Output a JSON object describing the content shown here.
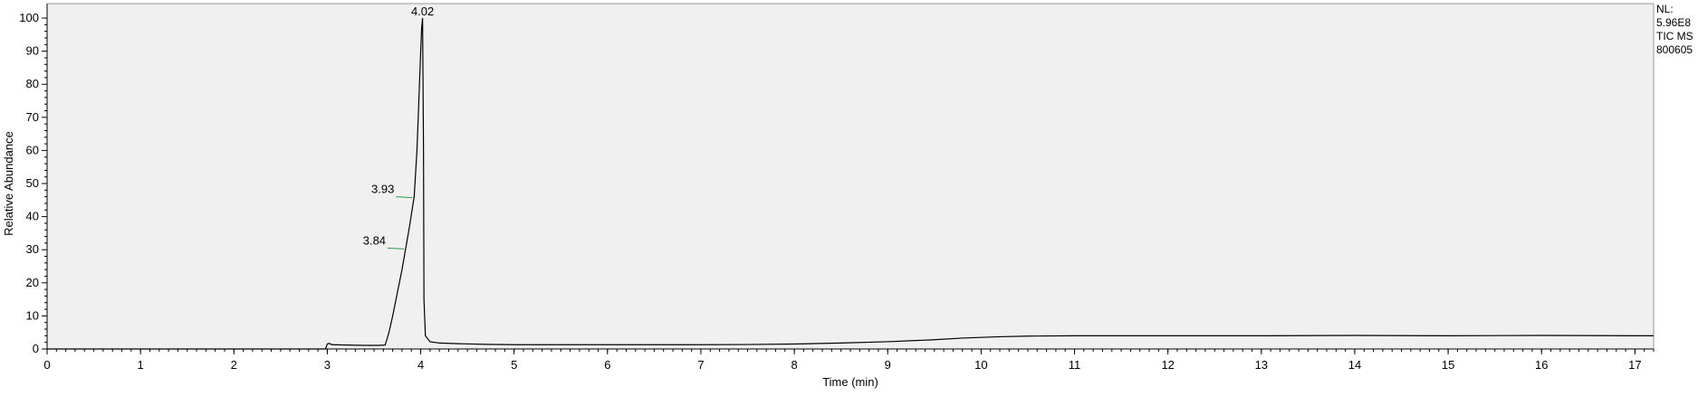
{
  "chart_data": {
    "type": "line",
    "xlabel": "Time (min)",
    "ylabel": "Relative Abundance",
    "xlim": [
      0,
      17.2
    ],
    "ylim": [
      0,
      100
    ],
    "x_ticks": [
      "0",
      "1",
      "2",
      "3",
      "4",
      "5",
      "6",
      "7",
      "8",
      "9",
      "10",
      "11",
      "12",
      "13",
      "14",
      "15",
      "16",
      "17"
    ],
    "y_ticks": [
      "0",
      "10",
      "20",
      "30",
      "40",
      "50",
      "60",
      "70",
      "80",
      "90",
      "100"
    ],
    "grid": false,
    "background_color": "#f0f0f0",
    "line_color": "#000000",
    "marker_color": "#2e9a4a",
    "info_lines": [
      "NL:",
      "5.96E8",
      "TIC  MS",
      "800605"
    ],
    "peak_labels": [
      {
        "x": 4.02,
        "y": 100,
        "text": "4.02"
      },
      {
        "x": 3.93,
        "y": 46,
        "text": "3.93"
      },
      {
        "x": 3.84,
        "y": 30.5,
        "text": "3.84"
      }
    ],
    "series": [
      {
        "x": [
          0,
          1,
          2,
          2.98,
          3.0,
          3.02,
          3.05,
          3.2,
          3.4,
          3.55,
          3.62,
          3.66,
          3.7,
          3.75,
          3.8,
          3.84,
          3.88,
          3.93,
          3.96,
          3.98,
          4.0,
          4.01,
          4.02,
          4.03,
          4.035,
          4.05,
          4.1,
          4.2,
          4.4,
          4.7,
          5,
          6,
          7,
          7.5,
          8,
          8.5,
          9,
          9.5,
          9.8,
          10.2,
          10.5,
          11,
          12,
          13,
          14,
          15,
          16,
          17,
          17.2
        ],
        "y": [
          0,
          0,
          0,
          0,
          1.5,
          1.7,
          1.3,
          1.2,
          1.1,
          1.1,
          1.2,
          5,
          10,
          17,
          24,
          30.5,
          37,
          46,
          60,
          75,
          90,
          97,
          100,
          60,
          15,
          4,
          2.2,
          1.8,
          1.6,
          1.4,
          1.3,
          1.3,
          1.3,
          1.35,
          1.5,
          1.8,
          2.2,
          2.8,
          3.3,
          3.7,
          3.9,
          4.0,
          4.0,
          4.0,
          4.1,
          4.0,
          4.1,
          4.0,
          4.0
        ]
      }
    ]
  }
}
